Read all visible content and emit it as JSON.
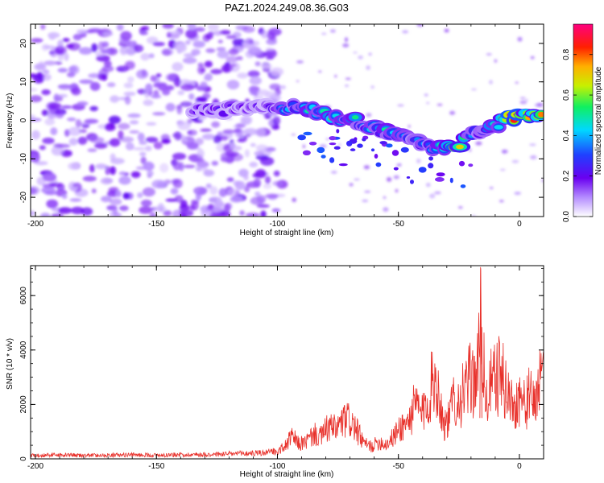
{
  "title": "PAZ1.2024.249.08.36.G03",
  "chart_data": [
    {
      "type": "heatmap",
      "xlabel": "Height of straight line (km)",
      "ylabel": "Frequency (Hz)",
      "xlim": [
        -202,
        10
      ],
      "ylim": [
        -25,
        25
      ],
      "xticks": [
        -200,
        -150,
        -100,
        -50,
        0
      ],
      "yticks": [
        -20,
        -10,
        0,
        10,
        20
      ],
      "colorbar": {
        "label": "Normalized spectral amplitude",
        "range": [
          0,
          0.95
        ],
        "ticks": [
          0.0,
          0.2,
          0.4,
          0.6,
          0.8
        ],
        "colormap": "rainbow (white-violet-blue-cyan-green-yellow-red-magenta)"
      },
      "signal_track": [
        {
          "x": -135,
          "y": 2.5,
          "amp": 0.2
        },
        {
          "x": -125,
          "y": 2.5,
          "amp": 0.25
        },
        {
          "x": -115,
          "y": 3,
          "amp": 0.2
        },
        {
          "x": -105,
          "y": 4,
          "amp": 0.18
        },
        {
          "x": -98,
          "y": 3.5,
          "amp": 0.35
        },
        {
          "x": -90,
          "y": 3,
          "amp": 0.45
        },
        {
          "x": -82,
          "y": 2,
          "amp": 0.5
        },
        {
          "x": -75,
          "y": 0.5,
          "amp": 0.55
        },
        {
          "x": -68,
          "y": 0,
          "amp": 0.45
        },
        {
          "x": -60,
          "y": -2,
          "amp": 0.4
        },
        {
          "x": -52,
          "y": -3,
          "amp": 0.45
        },
        {
          "x": -45,
          "y": -5,
          "amp": 0.35
        },
        {
          "x": -38,
          "y": -6.5,
          "amp": 0.35
        },
        {
          "x": -30,
          "y": -7,
          "amp": 0.5
        },
        {
          "x": -25,
          "y": -6,
          "amp": 0.9
        },
        {
          "x": -18,
          "y": -3,
          "amp": 0.35
        },
        {
          "x": -10,
          "y": -1,
          "amp": 0.45
        },
        {
          "x": -3,
          "y": 0.5,
          "amp": 0.85
        },
        {
          "x": 5,
          "y": 1,
          "amp": 0.8
        }
      ]
    },
    {
      "type": "line",
      "xlabel": "Height of straight line (km)",
      "ylabel": "SNR (10 * v/v)",
      "xlim": [
        -202,
        10
      ],
      "ylim": [
        0,
        7100
      ],
      "xticks": [
        -200,
        -150,
        -100,
        -50,
        0
      ],
      "yticks": [
        0,
        2000,
        4000,
        6000
      ],
      "color": "#e8302a",
      "series": [
        {
          "x": [
            -200,
            -190,
            -180,
            -170,
            -160,
            -150,
            -140,
            -130,
            -120,
            -110,
            -105,
            -100,
            -97,
            -94,
            -91,
            -88,
            -85,
            -82,
            -79,
            -76,
            -73,
            -70,
            -67,
            -64,
            -61,
            -58,
            -55,
            -52,
            -49,
            -46,
            -43,
            -40,
            -37,
            -35,
            -33,
            -31,
            -29,
            -27,
            -25,
            -23,
            -21,
            -19,
            -17,
            -16,
            -15,
            -14,
            -13,
            -12,
            -10,
            -8,
            -6,
            -4,
            -2,
            0,
            2,
            4,
            6,
            8,
            10
          ],
          "y": [
            150,
            160,
            140,
            150,
            160,
            150,
            170,
            180,
            200,
            230,
            250,
            300,
            500,
            900,
            600,
            700,
            1000,
            900,
            1300,
            1200,
            1500,
            1600,
            1100,
            600,
            500,
            700,
            600,
            900,
            1300,
            1500,
            2200,
            1800,
            2700,
            3500,
            2400,
            1400,
            1600,
            2600,
            2300,
            2700,
            3100,
            3300,
            3500,
            7000,
            4200,
            2200,
            2600,
            3000,
            3200,
            3500,
            3000,
            2400,
            2100,
            2600,
            2200,
            2500,
            2300,
            3000,
            3100
          ]
        }
      ]
    }
  ]
}
